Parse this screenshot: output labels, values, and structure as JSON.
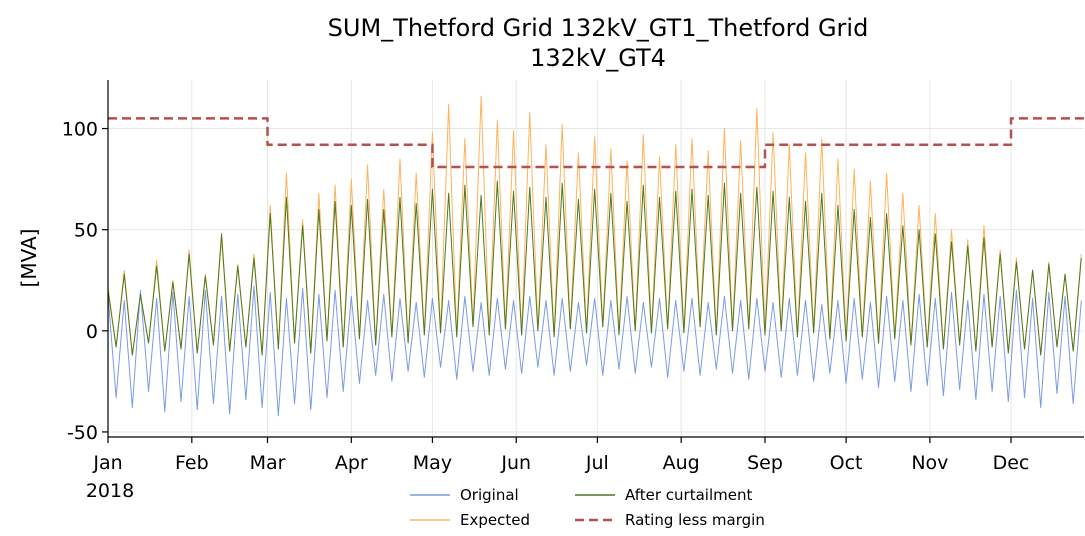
{
  "chart_data": {
    "type": "line",
    "title": [
      "SUM_Thetford Grid 132kV_GT1_Thetford Grid",
      "132kV_GT4"
    ],
    "ylabel": "[MVA]",
    "x_year_label": "2018",
    "xlim": [
      "2018-01-01",
      "2018-12-28"
    ],
    "xticks": [
      {
        "value": "2018-01-01",
        "label": "Jan"
      },
      {
        "value": "2018-02-01",
        "label": "Feb"
      },
      {
        "value": "2018-03-01",
        "label": "Mar"
      },
      {
        "value": "2018-04-01",
        "label": "Apr"
      },
      {
        "value": "2018-05-01",
        "label": "May"
      },
      {
        "value": "2018-06-01",
        "label": "Jun"
      },
      {
        "value": "2018-07-01",
        "label": "Jul"
      },
      {
        "value": "2018-08-01",
        "label": "Aug"
      },
      {
        "value": "2018-09-01",
        "label": "Sep"
      },
      {
        "value": "2018-10-01",
        "label": "Oct"
      },
      {
        "value": "2018-11-01",
        "label": "Nov"
      },
      {
        "value": "2018-12-01",
        "label": "Dec"
      }
    ],
    "ylim": [
      -52.5,
      124
    ],
    "yticks": [
      -50,
      0,
      50,
      100
    ],
    "grid": true,
    "legend": "lower center",
    "x": [
      "2018-01-01",
      "2018-01-04",
      "2018-01-07",
      "2018-01-10",
      "2018-01-13",
      "2018-01-16",
      "2018-01-19",
      "2018-01-22",
      "2018-01-25",
      "2018-01-28",
      "2018-01-31",
      "2018-02-03",
      "2018-02-06",
      "2018-02-09",
      "2018-02-12",
      "2018-02-15",
      "2018-02-18",
      "2018-02-21",
      "2018-02-24",
      "2018-02-27",
      "2018-03-02",
      "2018-03-05",
      "2018-03-08",
      "2018-03-11",
      "2018-03-14",
      "2018-03-17",
      "2018-03-20",
      "2018-03-23",
      "2018-03-26",
      "2018-03-29",
      "2018-04-01",
      "2018-04-04",
      "2018-04-07",
      "2018-04-10",
      "2018-04-13",
      "2018-04-16",
      "2018-04-19",
      "2018-04-22",
      "2018-04-25",
      "2018-04-28",
      "2018-05-01",
      "2018-05-04",
      "2018-05-07",
      "2018-05-10",
      "2018-05-13",
      "2018-05-16",
      "2018-05-19",
      "2018-05-22",
      "2018-05-25",
      "2018-05-28",
      "2018-05-31",
      "2018-06-03",
      "2018-06-06",
      "2018-06-09",
      "2018-06-12",
      "2018-06-15",
      "2018-06-18",
      "2018-06-21",
      "2018-06-24",
      "2018-06-27",
      "2018-06-30",
      "2018-07-03",
      "2018-07-06",
      "2018-07-09",
      "2018-07-12",
      "2018-07-15",
      "2018-07-18",
      "2018-07-21",
      "2018-07-24",
      "2018-07-27",
      "2018-07-30",
      "2018-08-02",
      "2018-08-05",
      "2018-08-08",
      "2018-08-11",
      "2018-08-14",
      "2018-08-17",
      "2018-08-20",
      "2018-08-23",
      "2018-08-26",
      "2018-08-29",
      "2018-09-01",
      "2018-09-04",
      "2018-09-07",
      "2018-09-10",
      "2018-09-13",
      "2018-09-16",
      "2018-09-19",
      "2018-09-22",
      "2018-09-25",
      "2018-09-28",
      "2018-10-01",
      "2018-10-04",
      "2018-10-07",
      "2018-10-10",
      "2018-10-13",
      "2018-10-16",
      "2018-10-19",
      "2018-10-22",
      "2018-10-25",
      "2018-10-28",
      "2018-10-31",
      "2018-11-03",
      "2018-11-06",
      "2018-11-09",
      "2018-11-12",
      "2018-11-15",
      "2018-11-18",
      "2018-11-21",
      "2018-11-24",
      "2018-11-27",
      "2018-11-30",
      "2018-12-03",
      "2018-12-06",
      "2018-12-09",
      "2018-12-12",
      "2018-12-15",
      "2018-12-18",
      "2018-12-21",
      "2018-12-24",
      "2018-12-27"
    ],
    "series": [
      {
        "name": "Original",
        "color": "#7b9be6",
        "width": 1,
        "values": [
          18,
          -33,
          15,
          -38,
          20,
          -30,
          16,
          -40,
          19,
          -35,
          17,
          -39,
          20,
          -36,
          17,
          -41,
          18,
          -34,
          22,
          -38,
          19,
          -42,
          16,
          -36,
          21,
          -39,
          18,
          -33,
          20,
          -30,
          17,
          -26,
          15,
          -22,
          18,
          -25,
          16,
          -20,
          14,
          -23,
          16,
          -18,
          15,
          -24,
          17,
          -20,
          14,
          -22,
          16,
          -19,
          15,
          -21,
          17,
          -18,
          15,
          -22,
          16,
          -20,
          14,
          -17,
          16,
          -22,
          15,
          -19,
          17,
          -21,
          14,
          -18,
          16,
          -23,
          15,
          -20,
          16,
          -22,
          14,
          -19,
          17,
          -21,
          15,
          -24,
          16,
          -20,
          14,
          -23,
          16,
          -22,
          15,
          -25,
          13,
          -21,
          15,
          -26,
          16,
          -24,
          14,
          -28,
          17,
          -25,
          15,
          -30,
          18,
          -27,
          16,
          -32,
          19,
          -29,
          15,
          -34,
          18,
          -30,
          17,
          -35,
          20,
          -33,
          16,
          -38,
          19,
          -31,
          17,
          -36,
          15
        ]
      },
      {
        "name": "Expected",
        "color": "#ffb35c",
        "width": 1,
        "values": [
          22,
          -8,
          30,
          -12,
          18,
          -6,
          35,
          -10,
          25,
          -9,
          40,
          -11,
          28,
          -7,
          45,
          -10,
          33,
          -8,
          38,
          -12,
          62,
          -9,
          78,
          -6,
          55,
          -11,
          68,
          -5,
          72,
          -8,
          75,
          -4,
          82,
          -7,
          70,
          -3,
          85,
          -6,
          78,
          -2,
          98,
          -1,
          112,
          -3,
          95,
          2,
          116,
          -2,
          104,
          1,
          99,
          -2,
          108,
          0,
          92,
          -3,
          102,
          1,
          88,
          -1,
          96,
          2,
          90,
          -2,
          84,
          0,
          97,
          -1,
          86,
          1,
          92,
          -1,
          95,
          2,
          89,
          -2,
          100,
          0,
          94,
          1,
          110,
          -2,
          98,
          0,
          92,
          -3,
          88,
          -1,
          95,
          -4,
          85,
          -5,
          80,
          -3,
          74,
          -6,
          78,
          -4,
          68,
          -7,
          62,
          -8,
          58,
          -9,
          50,
          -7,
          45,
          -10,
          52,
          -8,
          40,
          -11,
          36,
          -9,
          30,
          -12,
          34,
          -8,
          28,
          -10,
          38
        ]
      },
      {
        "name": "After curtailment",
        "color": "#4d7a1e",
        "width": 1,
        "values": [
          20,
          -8,
          28,
          -12,
          18,
          -6,
          32,
          -10,
          24,
          -9,
          38,
          -11,
          27,
          -7,
          48,
          -10,
          32,
          -8,
          36,
          -12,
          58,
          -9,
          66,
          -6,
          52,
          -11,
          60,
          -5,
          64,
          -8,
          62,
          -4,
          65,
          -7,
          60,
          -3,
          66,
          -6,
          63,
          -2,
          70,
          -1,
          68,
          -3,
          72,
          2,
          67,
          -2,
          74,
          1,
          69,
          -2,
          71,
          0,
          66,
          -3,
          73,
          1,
          65,
          -1,
          70,
          2,
          68,
          -2,
          64,
          0,
          72,
          -1,
          66,
          1,
          69,
          -1,
          70,
          2,
          67,
          -2,
          73,
          0,
          68,
          1,
          71,
          -2,
          69,
          0,
          66,
          -3,
          64,
          -1,
          68,
          -4,
          62,
          -5,
          60,
          -3,
          56,
          -6,
          58,
          -4,
          52,
          -7,
          50,
          -8,
          48,
          -9,
          44,
          -7,
          42,
          -10,
          46,
          -8,
          38,
          -11,
          34,
          -9,
          30,
          -12,
          33,
          -8,
          28,
          -10,
          36
        ]
      },
      {
        "name": "Rating less margin",
        "color": "#b5504a",
        "width": 2.5,
        "dashed": true,
        "x": [
          "2018-01-01",
          "2018-03-01",
          "2018-03-01",
          "2018-05-01",
          "2018-05-01",
          "2018-09-01",
          "2018-09-01",
          "2018-12-01",
          "2018-12-01",
          "2018-12-28"
        ],
        "values": [
          105,
          105,
          92,
          92,
          81,
          81,
          92,
          92,
          105,
          105
        ]
      }
    ]
  }
}
